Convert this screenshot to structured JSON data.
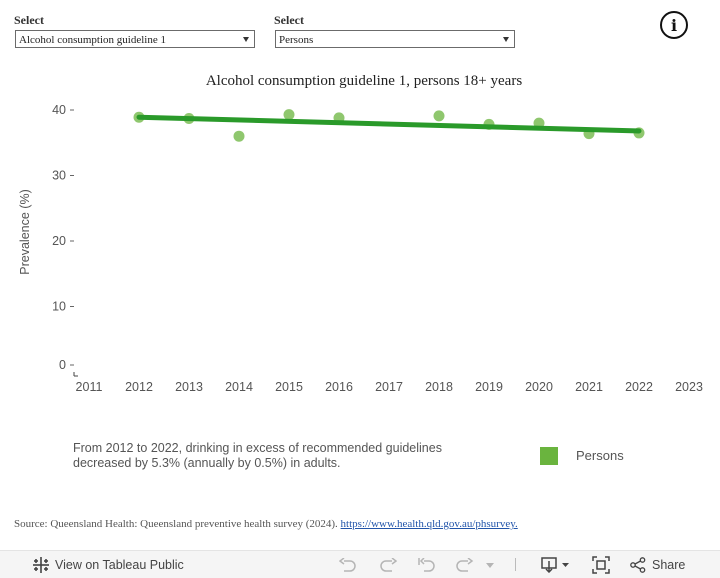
{
  "filters": {
    "measure": {
      "label": "Select",
      "value": "Alcohol consumption guideline 1"
    },
    "population": {
      "label": "Select",
      "value": "Persons"
    }
  },
  "info_icon": "info-icon",
  "colors": {
    "points": "#6ab43e",
    "trend": "#2a9a2a",
    "legend": "#6ab43e"
  },
  "chart_data": {
    "type": "scatter",
    "title": "Alcohol consumption guideline 1, persons 18+ years",
    "xlabel": "",
    "ylabel": "Prevalence (%)",
    "xlim": [
      2011,
      2023
    ],
    "ylim": [
      0,
      40
    ],
    "x_ticks": [
      2011,
      2012,
      2013,
      2014,
      2015,
      2016,
      2017,
      2018,
      2019,
      2020,
      2021,
      2022,
      2023
    ],
    "y_ticks": [
      0,
      10,
      20,
      30,
      40
    ],
    "grid": false,
    "series": [
      {
        "name": "Persons",
        "x": [
          2012,
          2013,
          2014,
          2015,
          2016,
          2018,
          2019,
          2020,
          2021,
          2022
        ],
        "y": [
          38.9,
          38.7,
          36.0,
          39.3,
          38.8,
          39.1,
          37.8,
          38.0,
          36.4,
          36.5
        ]
      }
    ],
    "trend": {
      "x": [
        2012,
        2022
      ],
      "y": [
        38.9,
        36.8
      ]
    },
    "legend": {
      "entries": [
        "Persons"
      ],
      "position": "bottom-right"
    },
    "annotation": "From 2012 to 2022, drinking in excess of recommended guidelines decreased by 5.3% (annually by 0.5%) in adults."
  },
  "source": {
    "text": "Source: Queensland Health: Queensland preventive health survey (2024).",
    "link": "https://www.health.qld.gov.au/phsurvey."
  },
  "toolbar": {
    "view_label": "View on Tableau Public",
    "share_label": "Share",
    "icons": [
      "tableau-icon",
      "undo-icon",
      "redo-icon",
      "revert-icon",
      "refresh-icon",
      "download-icon",
      "fullscreen-icon",
      "share-icon"
    ]
  }
}
